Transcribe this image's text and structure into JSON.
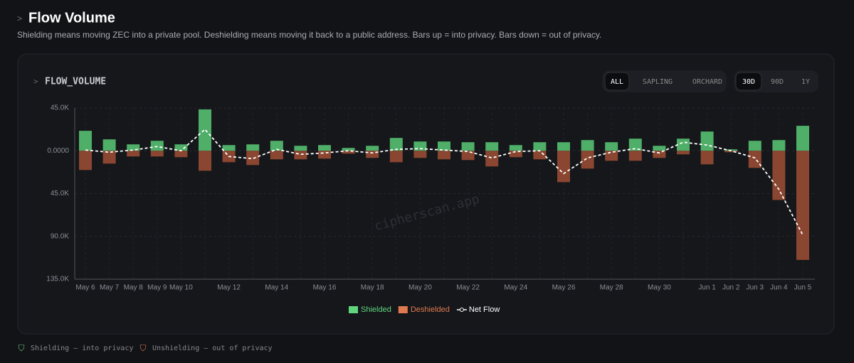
{
  "header": {
    "prompt": ">",
    "title": "Flow Volume",
    "subtitle": "Shielding means moving ZEC into a private pool. Deshielding means moving it back to a public address. Bars up = into privacy. Bars down = out of privacy."
  },
  "card": {
    "prompt": ">",
    "title": "FLOW_VOLUME",
    "pools": [
      "ALL",
      "SAPLING",
      "ORCHARD"
    ],
    "active_pool": "ALL",
    "ranges": [
      "30D",
      "90D",
      "1Y"
    ],
    "active_range": "30D",
    "watermark": "cipherscan.app"
  },
  "chart_data": {
    "type": "bar",
    "stacked": false,
    "categories": [
      "May 6",
      "May 7",
      "May 8",
      "May 9",
      "May 10",
      null,
      "May 12",
      null,
      "May 14",
      null,
      "May 16",
      null,
      "May 18",
      null,
      "May 20",
      null,
      "May 22",
      null,
      "May 24",
      null,
      "May 26",
      null,
      "May 28",
      null,
      "May 30",
      null,
      "Jun 1",
      "Jun 2",
      "Jun 3",
      "Jun 4",
      "Jun 5"
    ],
    "series": [
      {
        "name": "Shielded",
        "color": "#4fae68",
        "legend_color": "#5fd67e",
        "values": [
          21000,
          12000,
          6750,
          10500,
          6750,
          43500,
          6000,
          6750,
          10500,
          5250,
          6000,
          3000,
          5250,
          13500,
          9750,
          9750,
          9000,
          9000,
          6000,
          9000,
          9000,
          11250,
          9000,
          12750,
          5250,
          12750,
          20250,
          1500,
          10500,
          11250,
          26250
        ]
      },
      {
        "name": "Deshielded",
        "color": "#8a4630",
        "legend_color": "#e07a50",
        "values": [
          -20250,
          -13500,
          -6000,
          -6000,
          -6750,
          -21000,
          -12000,
          -15000,
          -9000,
          -9000,
          -8250,
          -3000,
          -7500,
          -12000,
          -7500,
          -9000,
          -9750,
          -16500,
          -6750,
          -9000,
          -33000,
          -18750,
          -10500,
          -10500,
          -7500,
          -3750,
          -14250,
          -1500,
          -18000,
          -51750,
          -114750
        ]
      },
      {
        "name": "Net Flow",
        "type": "line",
        "color": "#ffffff",
        "values": [
          750,
          -1500,
          750,
          4500,
          0,
          22500,
          -6000,
          -8250,
          1500,
          -3750,
          -2250,
          0,
          -2250,
          1500,
          2250,
          750,
          -750,
          -7500,
          -750,
          0,
          -24000,
          -7500,
          -1500,
          2250,
          -2250,
          9000,
          6000,
          0,
          -7500,
          -40500,
          -88500
        ]
      }
    ],
    "ylim": [
      -135000,
      45000
    ],
    "yticks": [
      {
        "value": 45000,
        "label": "45.0K"
      },
      {
        "value": 0,
        "label": "0.0000"
      },
      {
        "value": -45000,
        "label": "45.0K"
      },
      {
        "value": -90000,
        "label": "90.0K"
      },
      {
        "value": -135000,
        "label": "135.0K"
      }
    ],
    "grid": true
  },
  "footer": {
    "notes": [
      "Shielding — into privacy",
      "Unshielding — out of privacy"
    ]
  }
}
